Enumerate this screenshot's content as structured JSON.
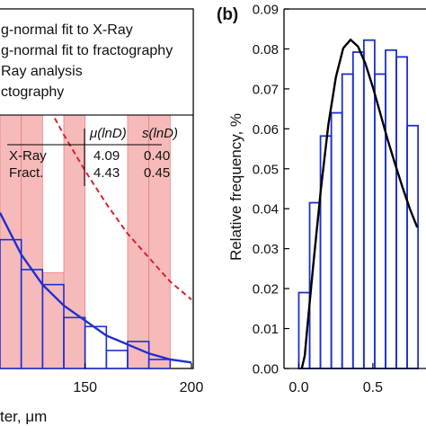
{
  "chart_data": [
    {
      "type": "bar",
      "panel_label": "",
      "xlabel_visible": "ter, μm",
      "x_ticks": [
        "150",
        "200"
      ],
      "xlim": [
        110,
        200
      ],
      "ylim": [
        0,
        0.09
      ],
      "legend": {
        "placement": "top",
        "entries": [
          {
            "label": "g-normal fit to X-Ray",
            "style": "solid-line",
            "color": "#1f2fcf"
          },
          {
            "label": "g-normal fit to fractography",
            "style": "dashed-line",
            "color": "#d9232e"
          },
          {
            "label": "Ray analysis",
            "style": "open-bar",
            "color": "#1f2fcf"
          },
          {
            "label": "ctography",
            "style": "filled-bar",
            "color": "#f4a3a3"
          }
        ]
      },
      "param_table": {
        "headers": [
          "",
          "μ(lnD)",
          "s(lnD)"
        ],
        "rows": [
          [
            "X-Ray",
            "4.09",
            "0.40"
          ],
          [
            "Fract.",
            "4.43",
            "0.45"
          ]
        ]
      },
      "series": [
        {
          "name": "ctography",
          "bin_width": 10,
          "bins": [
            {
              "x": 110,
              "y": 0.012
            },
            {
              "x": 120,
              "y": 0.0085
            },
            {
              "x": 130,
              "y": 0.0032
            },
            {
              "x": 140,
              "y": 0.0105
            },
            {
              "x": 170,
              "y": 0.0085
            },
            {
              "x": 180,
              "y": 0.0087
            }
          ]
        },
        {
          "name": "Ray analysis",
          "bin_width": 10,
          "bins": [
            {
              "x": 110,
              "y": 0.0043
            },
            {
              "x": 120,
              "y": 0.0033
            },
            {
              "x": 130,
              "y": 0.0028
            },
            {
              "x": 140,
              "y": 0.0017
            },
            {
              "x": 150,
              "y": 0.0014
            },
            {
              "x": 160,
              "y": 0.0006
            },
            {
              "x": 170,
              "y": 0.0009
            },
            {
              "x": 180,
              "y": 0.0003
            }
          ]
        },
        {
          "name": "g-normal fit to X-Ray",
          "points": [
            [
              110,
              0.0052
            ],
            [
              120,
              0.0038
            ],
            [
              130,
              0.0028
            ],
            [
              140,
              0.0021
            ],
            [
              150,
              0.0016
            ],
            [
              160,
              0.0011
            ],
            [
              170,
              0.0008
            ],
            [
              180,
              0.0005
            ],
            [
              190,
              0.0003
            ],
            [
              200,
              0.0002
            ]
          ]
        },
        {
          "name": "g-normal fit to fractography",
          "points": [
            [
              110,
              0.0118
            ],
            [
              120,
              0.0105
            ],
            [
              130,
              0.0091
            ],
            [
              140,
              0.0078
            ],
            [
              150,
              0.0066
            ],
            [
              160,
              0.0055
            ],
            [
              170,
              0.0045
            ],
            [
              180,
              0.0037
            ],
            [
              190,
              0.0029
            ],
            [
              200,
              0.0023
            ]
          ]
        }
      ]
    },
    {
      "type": "bar",
      "panel_label": "(b)",
      "ylabel": "Relative frequency, %",
      "x_ticks": [
        "0.0",
        "0.5"
      ],
      "y_ticks": [
        "0.00",
        "0.01",
        "0.02",
        "0.03",
        "0.04",
        "0.05",
        "0.06",
        "0.07",
        "0.08",
        "0.09"
      ],
      "xlim": [
        -0.1,
        0.95
      ],
      "ylim": [
        0,
        0.09
      ],
      "bin_width": 0.0732,
      "bins": [
        {
          "x": 0.0,
          "y": 0.019
        },
        {
          "x": 0.0732,
          "y": 0.0415
        },
        {
          "x": 0.1464,
          "y": 0.0582
        },
        {
          "x": 0.2196,
          "y": 0.064
        },
        {
          "x": 0.2928,
          "y": 0.0737
        },
        {
          "x": 0.366,
          "y": 0.0792
        },
        {
          "x": 0.4392,
          "y": 0.0822
        },
        {
          "x": 0.5124,
          "y": 0.0737
        },
        {
          "x": 0.5856,
          "y": 0.0797
        },
        {
          "x": 0.6588,
          "y": 0.078
        },
        {
          "x": 0.732,
          "y": 0.0608
        }
      ],
      "fit_curve": {
        "color": "#000000",
        "points": [
          [
            0.02,
            0.0
          ],
          [
            0.04,
            0.0032
          ],
          [
            0.06,
            0.0114
          ],
          [
            0.1,
            0.0269
          ],
          [
            0.15,
            0.0452
          ],
          [
            0.2,
            0.0611
          ],
          [
            0.25,
            0.0729
          ],
          [
            0.3,
            0.0802
          ],
          [
            0.35,
            0.0823
          ],
          [
            0.4,
            0.0806
          ],
          [
            0.45,
            0.0763
          ],
          [
            0.5,
            0.0704
          ],
          [
            0.55,
            0.0639
          ],
          [
            0.6,
            0.0573
          ],
          [
            0.65,
            0.0512
          ],
          [
            0.7,
            0.0454
          ],
          [
            0.75,
            0.04
          ],
          [
            0.8,
            0.0353
          ]
        ]
      }
    }
  ],
  "colors": {
    "blue": "#1f2fcf",
    "red": "#d9232e",
    "pink_fill": "#f4a3a3",
    "axis": "#000000"
  }
}
